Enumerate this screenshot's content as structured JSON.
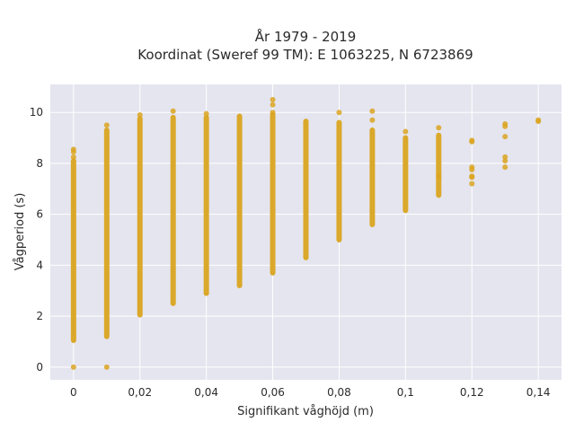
{
  "chart_data": {
    "type": "scatter",
    "title": "År 1979 - 2019",
    "subtitle": "Koordinat (Sweref 99 TM): E 1063225, N 6723869",
    "xlabel": "Signifikant våghöjd (m)",
    "ylabel": "Vågperiod (s)",
    "xlim": [
      -0.007,
      0.147
    ],
    "ylim": [
      -0.5,
      11.1
    ],
    "x_ticks": [
      0,
      0.02,
      0.04,
      0.06,
      0.08,
      0.1,
      0.12,
      0.14
    ],
    "x_tick_labels": [
      "0",
      "0,02",
      "0,04",
      "0,06",
      "0,08",
      "0,1",
      "0,12",
      "0,14"
    ],
    "y_ticks": [
      0,
      2,
      4,
      6,
      8,
      10
    ],
    "y_tick_labels": [
      "0",
      "2",
      "4",
      "6",
      "8",
      "10"
    ],
    "grid": true,
    "marker_color": "#DAA520",
    "plot_background": "#E5E5EF",
    "ranges": [
      {
        "x": 0.0,
        "y_min": 1.05,
        "y_max": 8.1
      },
      {
        "x": 0.01,
        "y_min": 1.2,
        "y_max": 9.3
      },
      {
        "x": 0.02,
        "y_min": 2.05,
        "y_max": 9.75
      },
      {
        "x": 0.03,
        "y_min": 2.5,
        "y_max": 9.8
      },
      {
        "x": 0.04,
        "y_min": 2.9,
        "y_max": 9.8
      },
      {
        "x": 0.05,
        "y_min": 3.2,
        "y_max": 9.85
      },
      {
        "x": 0.06,
        "y_min": 3.7,
        "y_max": 9.9
      },
      {
        "x": 0.07,
        "y_min": 4.3,
        "y_max": 9.65
      },
      {
        "x": 0.08,
        "y_min": 5.0,
        "y_max": 9.6
      },
      {
        "x": 0.09,
        "y_min": 5.6,
        "y_max": 9.3
      },
      {
        "x": 0.1,
        "y_min": 6.15,
        "y_max": 9.0
      },
      {
        "x": 0.11,
        "y_min": 6.75,
        "y_max": 9.1
      }
    ],
    "points": [
      {
        "x": 0.0,
        "y": 0.0
      },
      {
        "x": 0.0,
        "y": 8.55
      },
      {
        "x": 0.0,
        "y": 8.25
      },
      {
        "x": 0.0,
        "y": 8.45
      },
      {
        "x": 0.01,
        "y": 0.0
      },
      {
        "x": 0.01,
        "y": 9.5
      },
      {
        "x": 0.02,
        "y": 9.9
      },
      {
        "x": 0.03,
        "y": 10.05
      },
      {
        "x": 0.04,
        "y": 9.95
      },
      {
        "x": 0.06,
        "y": 10.5
      },
      {
        "x": 0.06,
        "y": 10.3
      },
      {
        "x": 0.06,
        "y": 10.0
      },
      {
        "x": 0.08,
        "y": 10.0
      },
      {
        "x": 0.09,
        "y": 10.05
      },
      {
        "x": 0.09,
        "y": 9.7
      },
      {
        "x": 0.1,
        "y": 9.25
      },
      {
        "x": 0.11,
        "y": 9.4
      },
      {
        "x": 0.11,
        "y": 7.5
      },
      {
        "x": 0.12,
        "y": 8.9
      },
      {
        "x": 0.12,
        "y": 8.85
      },
      {
        "x": 0.12,
        "y": 7.85
      },
      {
        "x": 0.12,
        "y": 7.75
      },
      {
        "x": 0.12,
        "y": 7.5
      },
      {
        "x": 0.12,
        "y": 7.45
      },
      {
        "x": 0.12,
        "y": 7.2
      },
      {
        "x": 0.13,
        "y": 9.55
      },
      {
        "x": 0.13,
        "y": 9.45
      },
      {
        "x": 0.13,
        "y": 9.05
      },
      {
        "x": 0.13,
        "y": 8.25
      },
      {
        "x": 0.13,
        "y": 8.1
      },
      {
        "x": 0.13,
        "y": 7.85
      },
      {
        "x": 0.14,
        "y": 9.65
      },
      {
        "x": 0.14,
        "y": 9.7
      }
    ]
  }
}
